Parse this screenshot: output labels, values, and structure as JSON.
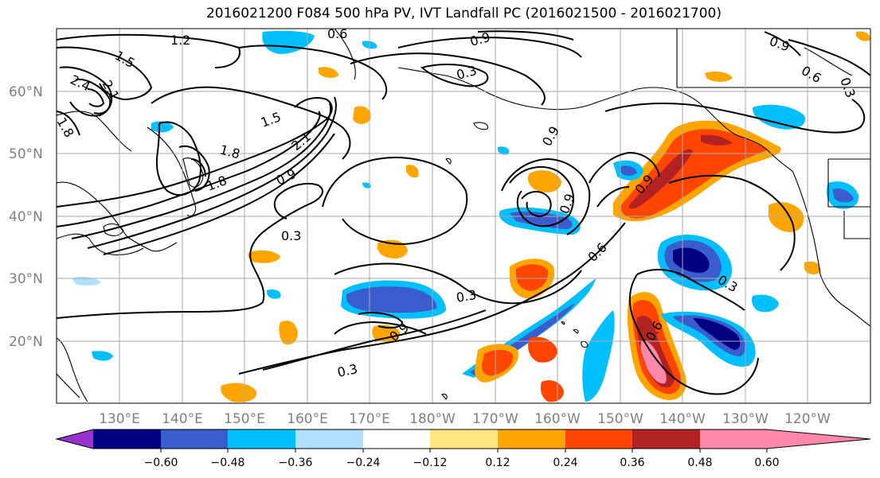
{
  "title": "2016021200 F084 500 hPa PV, IVT Landfall PC (2016021500 - 2016021700)",
  "map": {
    "lat_ticks": [
      "60°N",
      "50°N",
      "40°N",
      "30°N",
      "20°N"
    ],
    "lon_ticks": [
      "130°E",
      "140°E",
      "150°E",
      "160°E",
      "170°E",
      "180°W",
      "170°W",
      "160°W",
      "150°W",
      "140°W",
      "130°W",
      "120°W"
    ],
    "contour_labels": [
      "1.2",
      "1.5",
      "2.4",
      "2.1",
      "1.8",
      "1.5",
      "1.8",
      "2.1",
      "0.9",
      "0.6",
      "0.9",
      "0.3",
      "0.9",
      "0.6",
      "0.9",
      "0.3",
      "0.9",
      "0.9",
      "0.6",
      "0.3",
      "0.3",
      "0.9",
      "0.6",
      "0.3",
      "0.3",
      "1.8"
    ]
  },
  "colorbar": {
    "ticks": [
      "−0.60",
      "−0.48",
      "−0.36",
      "−0.24",
      "−0.12",
      "0.12",
      "0.24",
      "0.36",
      "0.48",
      "0.60"
    ],
    "colors": [
      "#9932cc",
      "#000080",
      "#3a5ccc",
      "#00bfff",
      "#b0e0ff",
      "#ffffff",
      "#ffe680",
      "#ffa500",
      "#ff4500",
      "#b22222",
      "#ff88aa"
    ]
  }
}
